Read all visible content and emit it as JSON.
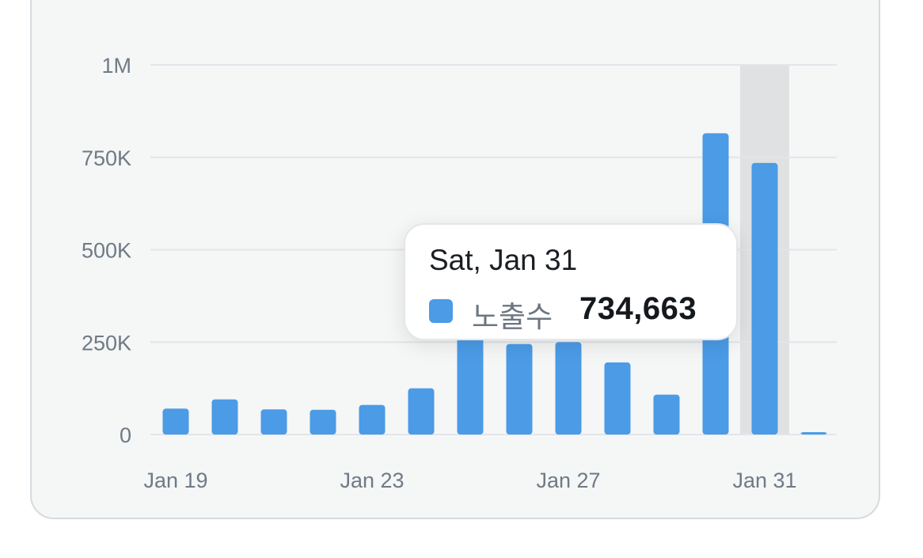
{
  "chart_data": {
    "type": "bar",
    "categories": [
      "Jan 19",
      "Jan 20",
      "Jan 21",
      "Jan 22",
      "Jan 23",
      "Jan 24",
      "Jan 25",
      "Jan 26",
      "Jan 27",
      "Jan 28",
      "Jan 29",
      "Jan 30",
      "Jan 31",
      "Feb 1"
    ],
    "series": [
      {
        "name": "노출수",
        "color": "#4b9be6",
        "values": [
          70000,
          95000,
          68000,
          67000,
          80000,
          125000,
          280000,
          245000,
          250000,
          195000,
          108000,
          815000,
          734663,
          5000
        ]
      }
    ],
    "x_tick_labels": [
      "Jan 19",
      "Jan 23",
      "Jan 27",
      "Jan 31"
    ],
    "y_ticks": [
      0,
      250000,
      500000,
      750000,
      1000000
    ],
    "y_tick_labels": [
      "0",
      "250K",
      "500K",
      "750K",
      "1M"
    ],
    "ylim": [
      0,
      1000000
    ],
    "grid": true,
    "highlighted_index": 12
  },
  "tooltip": {
    "date": "Sat, Jan 31",
    "series_label": "노출수",
    "value": "734,663"
  }
}
